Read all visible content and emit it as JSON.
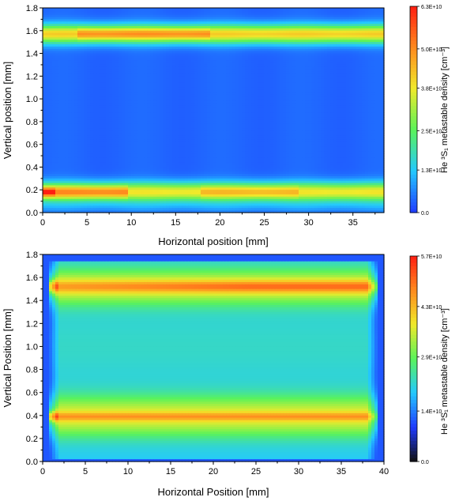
{
  "chart_data": [
    {
      "type": "heatmap",
      "xlabel": "Horizontal position  [mm]",
      "ylabel": "Vertical position [mm]",
      "xlim": [
        0,
        38.5
      ],
      "ylim": [
        0,
        1.8
      ],
      "xticks": [
        0,
        5,
        10,
        15,
        20,
        25,
        30,
        35
      ],
      "yticks": [
        0.0,
        0.2,
        0.4,
        0.6,
        0.8,
        1.0,
        1.2,
        1.4,
        1.6,
        1.8
      ],
      "ytick_labels": [
        "0.0",
        "0.2",
        "0.4",
        "0.6",
        "0.8",
        "1.0",
        "1.2",
        "1.4",
        "1.6",
        "1.8"
      ],
      "colorbar": {
        "label": "He ³S₁ metastable density  [cm⁻³]",
        "min": 0,
        "max": 63000000000.0,
        "tick_values": [
          0,
          13000000000.0,
          25000000000.0,
          38000000000.0,
          50000000000.0,
          63000000000.0
        ],
        "tick_labels": [
          "0.0",
          "1.3E+10",
          "2.5E+10",
          "3.8E+10",
          "5.0E+10",
          "6.3E+10"
        ],
        "colors": [
          "#1f3bff",
          "#23c9ff",
          "#5af35a",
          "#f0ea2a",
          "#ff8a1e",
          "#ff1e12"
        ]
      },
      "grid": false,
      "bands": [
        {
          "y": 0.18,
          "peak": 0.8
        },
        {
          "y": 1.57,
          "peak": 0.78
        }
      ]
    },
    {
      "type": "heatmap",
      "xlabel": "Horizontal Position  [mm]",
      "ylabel": "Vertical Position [mm]",
      "xlim": [
        0,
        40
      ],
      "ylim": [
        0,
        1.8
      ],
      "xticks": [
        0,
        5,
        10,
        15,
        20,
        25,
        30,
        35,
        40
      ],
      "yticks": [
        0.0,
        0.2,
        0.4,
        0.6,
        0.8,
        1.0,
        1.2,
        1.4,
        1.6,
        1.8
      ],
      "ytick_labels": [
        "0.0",
        "0.2",
        "0.4",
        "0.6",
        "0.8",
        "1.0",
        "1.2",
        "1.4",
        "1.6",
        "1.8"
      ],
      "colorbar": {
        "label": "He ³S₁ metastable density  [cm⁻³]",
        "min": 0,
        "max": 57000000000.0,
        "tick_values": [
          0,
          14000000000.0,
          29000000000.0,
          43000000000.0,
          57000000000.0
        ],
        "tick_labels": [
          "0.0",
          "1.4E+10",
          "2.9E+10",
          "4.3E+10",
          "5.7E+10"
        ],
        "colors": [
          "#101010",
          "#1f3bff",
          "#23c9ff",
          "#5af35a",
          "#f0ea2a",
          "#ff8a1e",
          "#ff1e12"
        ]
      },
      "grid": false,
      "bands": [
        {
          "y": 0.39,
          "peak": 0.8
        },
        {
          "y": 1.52,
          "peak": 0.88
        }
      ]
    }
  ]
}
